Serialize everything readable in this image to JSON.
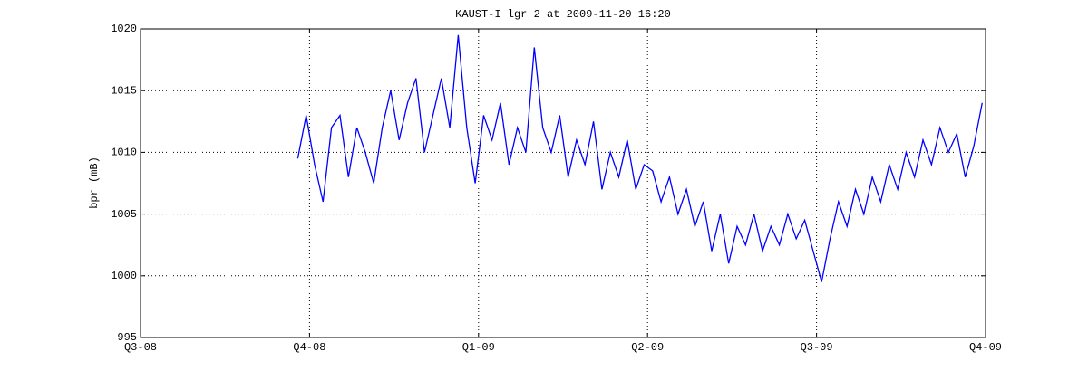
{
  "chart_data": {
    "type": "line",
    "title": "KAUST-I lgr 2 at 2009-11-20 16:20",
    "y_label": "bpr (mB)",
    "xlim": [
      0,
      5
    ],
    "xticks": [
      {
        "value": 0,
        "label": "Q3-08"
      },
      {
        "value": 1,
        "label": "Q4-08"
      },
      {
        "value": 2,
        "label": "Q1-09"
      },
      {
        "value": 3,
        "label": "Q2-09"
      },
      {
        "value": 4,
        "label": "Q3-09"
      },
      {
        "value": 5,
        "label": "Q4-09"
      }
    ],
    "ylim": [
      995,
      1020
    ],
    "yticks": [
      995,
      1000,
      1005,
      1010,
      1015,
      1020
    ],
    "grid": true,
    "x": [
      0.93,
      0.98,
      1.03,
      1.08,
      1.13,
      1.18,
      1.23,
      1.28,
      1.33,
      1.38,
      1.43,
      1.48,
      1.53,
      1.58,
      1.63,
      1.68,
      1.73,
      1.78,
      1.83,
      1.88,
      1.93,
      1.98,
      2.03,
      2.08,
      2.13,
      2.18,
      2.23,
      2.28,
      2.33,
      2.38,
      2.43,
      2.48,
      2.53,
      2.58,
      2.63,
      2.68,
      2.73,
      2.78,
      2.83,
      2.88,
      2.93,
      2.98,
      3.03,
      3.08,
      3.13,
      3.18,
      3.23,
      3.28,
      3.33,
      3.38,
      3.43,
      3.48,
      3.53,
      3.58,
      3.63,
      3.68,
      3.73,
      3.78,
      3.83,
      3.88,
      3.93,
      3.98,
      4.03,
      4.08,
      4.13,
      4.18,
      4.23,
      4.28,
      4.33,
      4.38,
      4.43,
      4.48,
      4.53,
      4.58,
      4.63,
      4.68,
      4.73,
      4.78,
      4.83,
      4.88,
      4.93,
      4.98
    ],
    "series": [
      {
        "color": "#0000ff",
        "values": [
          1009.5,
          1013,
          1009,
          1006,
          1012,
          1013,
          1008,
          1012,
          1010,
          1007.5,
          1012,
          1015,
          1011,
          1014,
          1016,
          1010,
          1013,
          1016,
          1012,
          1019.5,
          1012,
          1007.5,
          1013,
          1011,
          1014,
          1009,
          1012,
          1010,
          1018.5,
          1012,
          1010,
          1013,
          1008,
          1011,
          1009,
          1012.5,
          1007,
          1010,
          1008,
          1011,
          1007,
          1009,
          1008.5,
          1006,
          1008,
          1005,
          1007,
          1004,
          1006,
          1002,
          1005,
          1001,
          1004,
          1002.5,
          1005,
          1002,
          1004,
          1002.5,
          1005,
          1003,
          1004.5,
          1002,
          999.5,
          1003,
          1006,
          1004,
          1007,
          1005,
          1008,
          1006,
          1009,
          1007,
          1010,
          1008,
          1011,
          1009,
          1012,
          1010,
          1011.5,
          1008,
          1010.5,
          1014
        ]
      }
    ]
  }
}
